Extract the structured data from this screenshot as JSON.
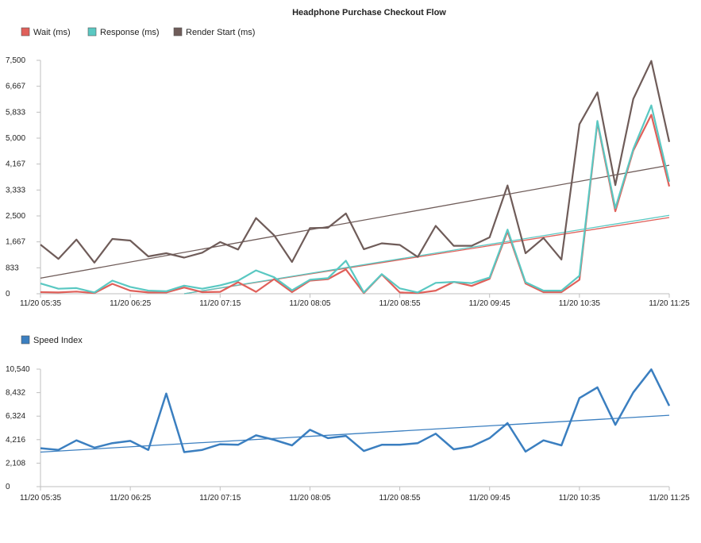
{
  "page_title": "Headphone Purchase Checkout Flow",
  "chart_data": [
    {
      "type": "line",
      "title": "Headphone Purchase Checkout Flow",
      "xlabel": "",
      "ylabel": "",
      "x_ticks": [
        "11/20 05:35",
        "11/20 06:25",
        "11/20 07:15",
        "11/20 08:05",
        "11/20 08:55",
        "11/20 09:45",
        "11/20 10:35",
        "11/20 11:25"
      ],
      "y_ticks": [
        "0",
        "833",
        "1,667",
        "2,500",
        "3,333",
        "4,167",
        "5,000",
        "5,833",
        "6,667",
        "7,500"
      ],
      "ylim": [
        0,
        7500
      ],
      "legend_position": "top-left",
      "grid": false,
      "x": [
        "11/20 05:35",
        "11/20 05:40",
        "11/20 05:45",
        "11/20 05:50",
        "11/20 05:55",
        "11/20 06:00",
        "11/20 06:05",
        "11/20 06:10",
        "11/20 06:15",
        "11/20 06:20",
        "11/20 06:25",
        "11/20 06:30",
        "11/20 06:35",
        "11/20 06:40",
        "11/20 06:45",
        "11/20 06:50",
        "11/20 06:55",
        "11/20 07:00",
        "11/20 07:05",
        "11/20 07:10",
        "11/20 07:15",
        "11/20 07:20",
        "11/20 07:25",
        "11/20 07:30",
        "11/20 07:35",
        "11/20 07:40",
        "11/20 07:45",
        "11/20 07:50",
        "11/20 07:55",
        "11/20 08:00",
        "11/20 08:05",
        "11/20 08:10",
        "11/20 08:15",
        "11/20 08:20",
        "11/20 08:25",
        "11/20 08:30",
        "11/20 08:35",
        "11/20 08:40",
        "11/20 08:45",
        "11/20 08:50",
        "11/20 08:55",
        "11/20 09:00",
        "11/20 09:05",
        "11/20 09:10",
        "11/20 09:15",
        "11/20 09:20",
        "11/20 09:25",
        "11/20 09:30",
        "11/20 09:35",
        "11/20 09:40",
        "11/20 09:45",
        "11/20 09:50",
        "11/20 09:55",
        "11/20 10:00",
        "11/20 10:05",
        "11/20 10:10",
        "11/20 10:15",
        "11/20 10:20",
        "11/20 10:25",
        "11/20 10:30",
        "11/20 10:35",
        "11/20 10:40",
        "11/20 10:45",
        "11/20 10:50",
        "11/20 10:55",
        "11/20 11:00",
        "11/20 11:05",
        "11/20 11:10",
        "11/20 11:15",
        "11/20 11:20",
        "11/20 11:25"
      ],
      "series": [
        {
          "name": "Wait (ms)",
          "color": "#e0605a",
          "points": [
            [
              "11/20 05:35",
              50
            ],
            [
              "11/20 05:45",
              40
            ],
            [
              "11/20 05:55",
              70
            ],
            [
              "11/20 06:05",
              20
            ],
            [
              "11/20 06:15",
              320
            ],
            [
              "11/20 06:25",
              100
            ],
            [
              "11/20 06:35",
              40
            ],
            [
              "11/20 06:45",
              40
            ],
            [
              "11/20 06:55",
              200
            ],
            [
              "11/20 07:05",
              50
            ],
            [
              "11/20 07:15",
              60
            ],
            [
              "11/20 07:25",
              370
            ],
            [
              "11/20 07:35",
              60
            ],
            [
              "11/20 07:45",
              470
            ],
            [
              "11/20 07:55",
              50
            ],
            [
              "11/20 08:05",
              420
            ],
            [
              "11/20 08:15",
              470
            ],
            [
              "11/20 08:25",
              780
            ],
            [
              "11/20 08:35",
              20
            ],
            [
              "11/20 08:45",
              620
            ],
            [
              "11/20 08:55",
              40
            ],
            [
              "11/20 09:05",
              20
            ],
            [
              "11/20 09:15",
              100
            ],
            [
              "11/20 09:25",
              380
            ],
            [
              "11/20 09:35",
              250
            ],
            [
              "11/20 09:45",
              480
            ],
            [
              "11/20 09:55",
              2000
            ],
            [
              "11/20 10:05",
              330
            ],
            [
              "11/20 10:15",
              50
            ],
            [
              "11/20 10:25",
              50
            ],
            [
              "11/20 10:35",
              450
            ],
            [
              "11/20 10:45",
              5500
            ],
            [
              "11/20 10:55",
              2650
            ],
            [
              "11/20 11:05",
              4600
            ],
            [
              "11/20 11:15",
              5750
            ],
            [
              "11/20 11:25",
              3450
            ]
          ],
          "trend": [
            [
              "11/20 06:55",
              0
            ],
            [
              "11/20 11:25",
              2450
            ]
          ]
        },
        {
          "name": "Response (ms)",
          "color": "#5ac8c2",
          "points": [
            [
              "11/20 05:35",
              330
            ],
            [
              "11/20 05:45",
              160
            ],
            [
              "11/20 05:55",
              180
            ],
            [
              "11/20 06:05",
              40
            ],
            [
              "11/20 06:15",
              420
            ],
            [
              "11/20 06:25",
              220
            ],
            [
              "11/20 06:35",
              100
            ],
            [
              "11/20 06:45",
              80
            ],
            [
              "11/20 06:55",
              260
            ],
            [
              "11/20 07:05",
              160
            ],
            [
              "11/20 07:15",
              270
            ],
            [
              "11/20 07:25",
              420
            ],
            [
              "11/20 07:35",
              750
            ],
            [
              "11/20 07:45",
              530
            ],
            [
              "11/20 07:55",
              110
            ],
            [
              "11/20 08:05",
              450
            ],
            [
              "11/20 08:15",
              500
            ],
            [
              "11/20 08:25",
              1060
            ],
            [
              "11/20 08:35",
              40
            ],
            [
              "11/20 08:45",
              630
            ],
            [
              "11/20 08:55",
              170
            ],
            [
              "11/20 09:05",
              40
            ],
            [
              "11/20 09:15",
              350
            ],
            [
              "11/20 09:25",
              380
            ],
            [
              "11/20 09:35",
              340
            ],
            [
              "11/20 09:45",
              520
            ],
            [
              "11/20 09:55",
              2060
            ],
            [
              "11/20 10:05",
              370
            ],
            [
              "11/20 10:15",
              100
            ],
            [
              "11/20 10:25",
              100
            ],
            [
              "11/20 10:35",
              580
            ],
            [
              "11/20 10:45",
              5550
            ],
            [
              "11/20 10:55",
              2750
            ],
            [
              "11/20 11:05",
              4650
            ],
            [
              "11/20 11:15",
              6050
            ],
            [
              "11/20 11:25",
              3600
            ]
          ],
          "trend": [
            [
              "11/20 06:55",
              0
            ],
            [
              "11/20 11:25",
              2520
            ]
          ]
        },
        {
          "name": "Render Start (ms)",
          "color": "#6f5c59",
          "points": [
            [
              "11/20 05:35",
              1580
            ],
            [
              "11/20 05:45",
              1120
            ],
            [
              "11/20 05:55",
              1740
            ],
            [
              "11/20 06:05",
              1000
            ],
            [
              "11/20 06:15",
              1760
            ],
            [
              "11/20 06:25",
              1710
            ],
            [
              "11/20 06:35",
              1200
            ],
            [
              "11/20 06:45",
              1300
            ],
            [
              "11/20 06:55",
              1160
            ],
            [
              "11/20 07:05",
              1320
            ],
            [
              "11/20 07:15",
              1660
            ],
            [
              "11/20 07:25",
              1420
            ],
            [
              "11/20 07:35",
              2430
            ],
            [
              "11/20 07:45",
              1880
            ],
            [
              "11/20 07:55",
              1020
            ],
            [
              "11/20 08:05",
              2110
            ],
            [
              "11/20 08:15",
              2120
            ],
            [
              "11/20 08:25",
              2580
            ],
            [
              "11/20 08:35",
              1430
            ],
            [
              "11/20 08:45",
              1620
            ],
            [
              "11/20 08:55",
              1570
            ],
            [
              "11/20 09:05",
              1180
            ],
            [
              "11/20 09:15",
              2180
            ],
            [
              "11/20 09:25",
              1540
            ],
            [
              "11/20 09:35",
              1540
            ],
            [
              "11/20 09:45",
              1810
            ],
            [
              "11/20 09:55",
              3480
            ],
            [
              "11/20 10:05",
              1300
            ],
            [
              "11/20 10:15",
              1790
            ],
            [
              "11/20 10:25",
              1100
            ],
            [
              "11/20 10:35",
              5450
            ],
            [
              "11/20 10:45",
              6470
            ],
            [
              "11/20 10:55",
              3490
            ],
            [
              "11/20 11:05",
              6260
            ],
            [
              "11/20 11:15",
              7480
            ],
            [
              "11/20 11:25",
              4880
            ]
          ],
          "trend": [
            [
              "11/20 05:35",
              500
            ],
            [
              "11/20 11:25",
              4130
            ]
          ]
        }
      ]
    },
    {
      "type": "line",
      "title": "",
      "xlabel": "",
      "ylabel": "",
      "x_ticks": [
        "11/20 05:35",
        "11/20 06:25",
        "11/20 07:15",
        "11/20 08:05",
        "11/20 08:55",
        "11/20 09:45",
        "11/20 10:35",
        "11/20 11:25"
      ],
      "y_ticks": [
        "0",
        "2,108",
        "4,216",
        "6,324",
        "8,432",
        "10,540"
      ],
      "ylim": [
        0,
        10540
      ],
      "legend_position": "top-left",
      "grid": false,
      "series": [
        {
          "name": "Speed Index",
          "color": "#3b7fc0",
          "points": [
            [
              "11/20 05:35",
              3450
            ],
            [
              "11/20 05:45",
              3300
            ],
            [
              "11/20 05:55",
              4150
            ],
            [
              "11/20 06:05",
              3500
            ],
            [
              "11/20 06:15",
              3900
            ],
            [
              "11/20 06:25",
              4100
            ],
            [
              "11/20 06:35",
              3300
            ],
            [
              "11/20 06:45",
              8350
            ],
            [
              "11/20 06:55",
              3100
            ],
            [
              "11/20 07:05",
              3300
            ],
            [
              "11/20 07:15",
              3800
            ],
            [
              "11/20 07:25",
              3750
            ],
            [
              "11/20 07:35",
              4600
            ],
            [
              "11/20 07:45",
              4200
            ],
            [
              "11/20 07:55",
              3700
            ],
            [
              "11/20 08:05",
              5100
            ],
            [
              "11/20 08:15",
              4350
            ],
            [
              "11/20 08:25",
              4550
            ],
            [
              "11/20 08:35",
              3200
            ],
            [
              "11/20 08:45",
              3750
            ],
            [
              "11/20 08:55",
              3750
            ],
            [
              "11/20 09:05",
              3900
            ],
            [
              "11/20 09:15",
              4750
            ],
            [
              "11/20 09:25",
              3350
            ],
            [
              "11/20 09:35",
              3600
            ],
            [
              "11/20 09:45",
              4350
            ],
            [
              "11/20 09:55",
              5700
            ],
            [
              "11/20 10:05",
              3150
            ],
            [
              "11/20 10:15",
              4150
            ],
            [
              "11/20 10:25",
              3700
            ],
            [
              "11/20 10:35",
              7950
            ],
            [
              "11/20 10:45",
              8900
            ],
            [
              "11/20 10:55",
              5550
            ],
            [
              "11/20 11:05",
              8450
            ],
            [
              "11/20 11:15",
              10520
            ],
            [
              "11/20 11:25",
              7250
            ]
          ],
          "trend": [
            [
              "11/20 05:35",
              3100
            ],
            [
              "11/20 11:25",
              6400
            ]
          ]
        }
      ]
    }
  ]
}
